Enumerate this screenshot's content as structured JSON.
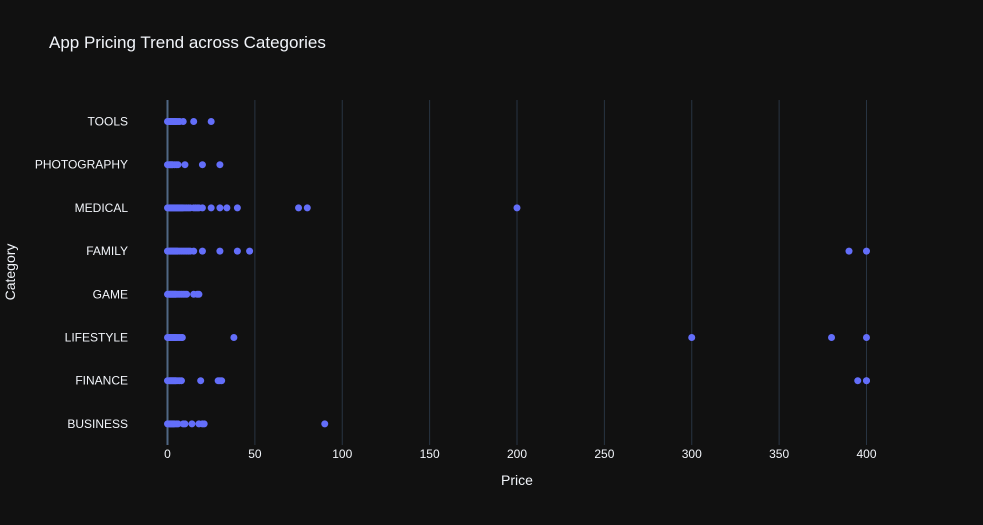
{
  "chart_data": {
    "type": "scatter",
    "title": "App Pricing Trend across Categories",
    "xlabel": "Price",
    "ylabel": "Category",
    "xlim": [
      -5,
      415
    ],
    "xticks": [
      0,
      50,
      100,
      150,
      200,
      250,
      300,
      350,
      400
    ],
    "grid": true,
    "marker_color": "#636efa",
    "background": "#111111",
    "grid_color": "#283442",
    "categories": [
      "TOOLS",
      "PHOTOGRAPHY",
      "MEDICAL",
      "FAMILY",
      "GAME",
      "LIFESTYLE",
      "FINANCE",
      "BUSINESS"
    ],
    "series": [
      {
        "category": "TOOLS",
        "x": [
          0,
          0.99,
          1.49,
          1.99,
          2.49,
          2.99,
          3.49,
          3.99,
          4.49,
          4.99,
          5.99,
          6.99,
          8.99,
          14.99,
          24.99
        ]
      },
      {
        "category": "PHOTOGRAPHY",
        "x": [
          0,
          0.99,
          1.49,
          1.99,
          2.49,
          2.99,
          3.99,
          4.99,
          5.99,
          9.99,
          19.99,
          29.99
        ]
      },
      {
        "category": "MEDICAL",
        "x": [
          0,
          0.99,
          1.49,
          1.99,
          2.49,
          2.99,
          3.49,
          3.99,
          4.49,
          4.99,
          5.49,
          5.99,
          6.49,
          6.99,
          7.49,
          7.99,
          8.49,
          8.99,
          9.99,
          10.99,
          11.99,
          12.99,
          14.99,
          15.99,
          16.99,
          17.99,
          19.99,
          24.99,
          29.99,
          33.99,
          39.99,
          74.99,
          79.99,
          199.99
        ]
      },
      {
        "category": "FAMILY",
        "x": [
          0,
          0.99,
          1.49,
          1.99,
          2.49,
          2.99,
          3.49,
          3.99,
          4.49,
          4.99,
          5.49,
          5.99,
          6.99,
          7.99,
          8.99,
          9.99,
          10.99,
          11.99,
          12.99,
          14.99,
          19.99,
          29.99,
          39.99,
          46.99,
          389.99,
          399.99
        ]
      },
      {
        "category": "GAME",
        "x": [
          0,
          0.99,
          1.49,
          1.99,
          2.49,
          2.99,
          3.49,
          3.99,
          4.49,
          4.99,
          5.99,
          6.99,
          7.99,
          8.99,
          9.99,
          10.99,
          14.99,
          16.99,
          17.99
        ]
      },
      {
        "category": "LIFESTYLE",
        "x": [
          0,
          0.99,
          1.49,
          1.99,
          2.49,
          2.99,
          3.49,
          3.99,
          4.49,
          4.99,
          5.99,
          6.99,
          7.99,
          8.49,
          37.99,
          299.99,
          379.99,
          399.99
        ]
      },
      {
        "category": "FINANCE",
        "x": [
          0,
          0.99,
          1.49,
          1.99,
          2.49,
          2.99,
          3.49,
          3.99,
          4.49,
          4.99,
          5.99,
          6.99,
          7.99,
          18.99,
          28.99,
          29.99,
          30.99,
          394.99,
          399.99,
          400
        ]
      },
      {
        "category": "BUSINESS",
        "x": [
          0,
          0.99,
          1.49,
          1.99,
          2.49,
          2.99,
          3.49,
          3.99,
          4.99,
          5.99,
          8.99,
          9.99,
          13.99,
          17.99,
          19.99,
          20.99,
          89.99
        ]
      }
    ]
  }
}
